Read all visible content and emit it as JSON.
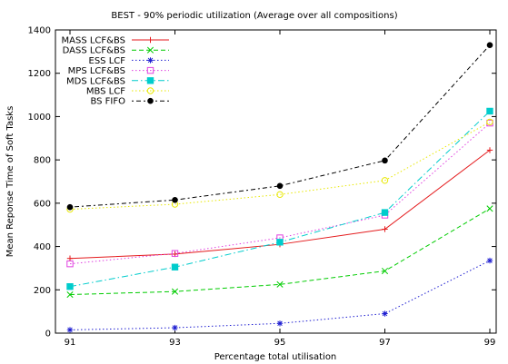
{
  "chart_data": {
    "type": "line",
    "title": "BEST - 90% periodic utilization (Average over all compositions)",
    "xlabel": "Percentage total utilisation",
    "ylabel": "Mean Reponse Time of Soft Tasks",
    "categories": [
      "91",
      "93",
      "95",
      "97",
      "99"
    ],
    "ylim": [
      0,
      1400
    ],
    "yticks": [
      0,
      200,
      400,
      600,
      800,
      1000,
      1200,
      1400
    ],
    "grid": false,
    "legend_position": "top-left",
    "series": [
      {
        "name": "MASS LCF&BS",
        "color": "#e41a1c",
        "dash": "solid",
        "marker": "plus",
        "values": [
          345,
          365,
          410,
          480,
          845
        ]
      },
      {
        "name": "DASS LCF&BS",
        "color": "#00cc00",
        "dash": "dashed",
        "marker": "x",
        "values": [
          178,
          192,
          225,
          287,
          575
        ]
      },
      {
        "name": "ESS LCF",
        "color": "#1f1fd1",
        "dash": "dotted",
        "marker": "star",
        "values": [
          15,
          25,
          45,
          90,
          335
        ]
      },
      {
        "name": "MPS LCF&BS",
        "color": "#e040e0",
        "dash": "dotted",
        "marker": "square",
        "values": [
          320,
          368,
          440,
          545,
          970
        ]
      },
      {
        "name": "MDS LCF&BS",
        "color": "#00cccc",
        "dash": "dashdot",
        "marker": "fsquare",
        "values": [
          215,
          305,
          420,
          557,
          1025
        ]
      },
      {
        "name": "MBS LCF",
        "color": "#e8e800",
        "dash": "dotted",
        "marker": "circle",
        "values": [
          572,
          595,
          640,
          705,
          975
        ]
      },
      {
        "name": "BS FIFO",
        "color": "#000000",
        "dash": "dotdash",
        "marker": "fcircle",
        "values": [
          582,
          615,
          680,
          797,
          1330
        ]
      }
    ]
  }
}
